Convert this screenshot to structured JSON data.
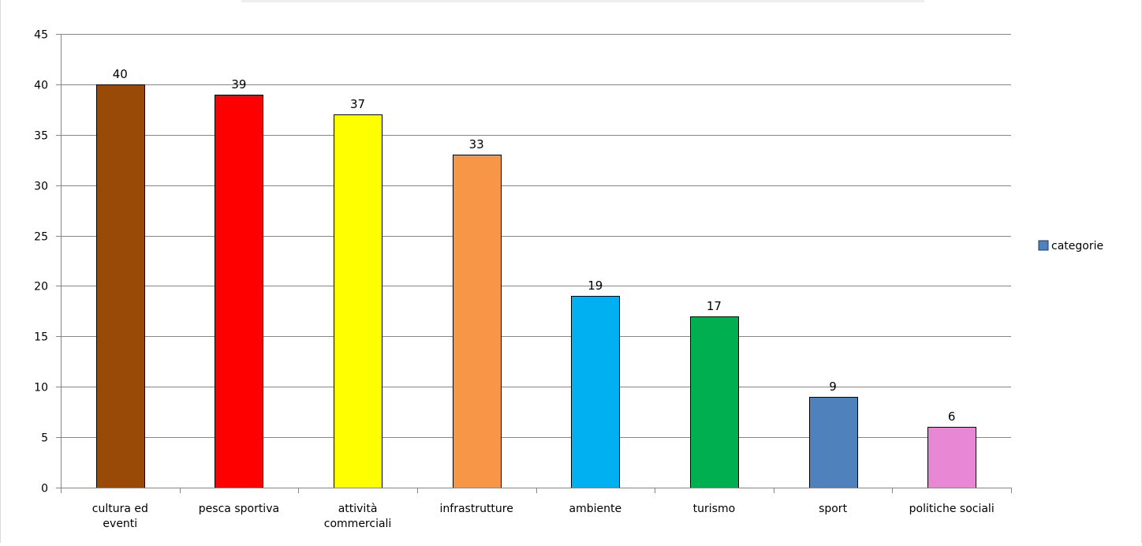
{
  "chart_data": {
    "type": "bar",
    "categories": [
      [
        "cultura ed",
        "eventi"
      ],
      [
        "pesca sportiva"
      ],
      [
        "attività",
        "commerciali"
      ],
      [
        "infrastrutture"
      ],
      [
        "ambiente"
      ],
      [
        "turismo"
      ],
      [
        "sport"
      ],
      [
        "politiche sociali"
      ]
    ],
    "values": [
      40,
      39,
      37,
      33,
      19,
      17,
      9,
      6
    ],
    "bar_colors": [
      "#994a07",
      "#ff0000",
      "#ffff00",
      "#f79646",
      "#00b0f0",
      "#00b050",
      "#4f81bd",
      "#e888d4"
    ],
    "data_labels": [
      "40",
      "39",
      "37",
      "33",
      "19",
      "17",
      "9",
      "6"
    ],
    "y_ticks": [
      "0",
      "5",
      "10",
      "15",
      "20",
      "25",
      "30",
      "35",
      "40",
      "45"
    ],
    "ylim": [
      0,
      45
    ],
    "grid": true,
    "legend": {
      "position": "right",
      "label": "categorie",
      "color": "#4f81bd"
    },
    "title": "",
    "xlabel": "",
    "ylabel": ""
  }
}
